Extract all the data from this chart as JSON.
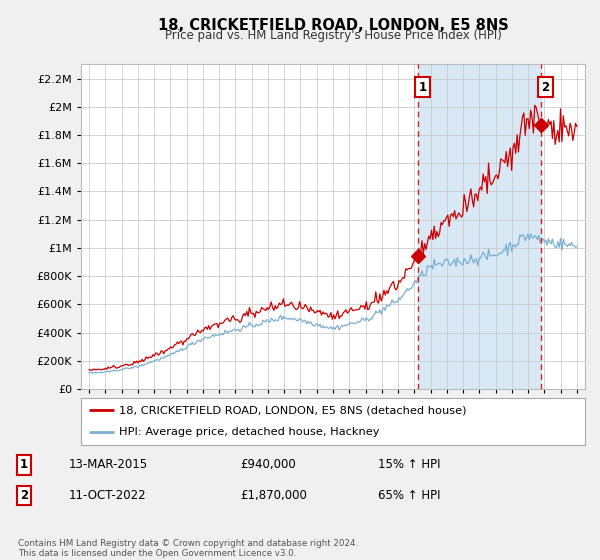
{
  "title": "18, CRICKETFIELD ROAD, LONDON, E5 8NS",
  "subtitle": "Price paid vs. HM Land Registry's House Price Index (HPI)",
  "hpi_label": "HPI: Average price, detached house, Hackney",
  "property_label": "18, CRICKETFIELD ROAD, LONDON, E5 8NS (detached house)",
  "sale1_date": "13-MAR-2015",
  "sale1_price": "£940,000",
  "sale1_pct": "15% ↑ HPI",
  "sale2_date": "11-OCT-2022",
  "sale2_price": "£1,870,000",
  "sale2_pct": "65% ↑ HPI",
  "footer": "Contains HM Land Registry data © Crown copyright and database right 2024.\nThis data is licensed under the Open Government Licence v3.0.",
  "hpi_color": "#7bafd4",
  "hpi_fill_color": "#d8e8f5",
  "property_color": "#cc0000",
  "sale1_x": 2015.2,
  "sale2_x": 2022.78,
  "sale1_y": 940000,
  "sale2_y": 1870000,
  "ylim": [
    0,
    2300000
  ],
  "xlim_left": 1994.5,
  "xlim_right": 2025.5,
  "background_color": "#f0f0f0",
  "plot_bg": "#ffffff",
  "grid_color": "#cccccc"
}
